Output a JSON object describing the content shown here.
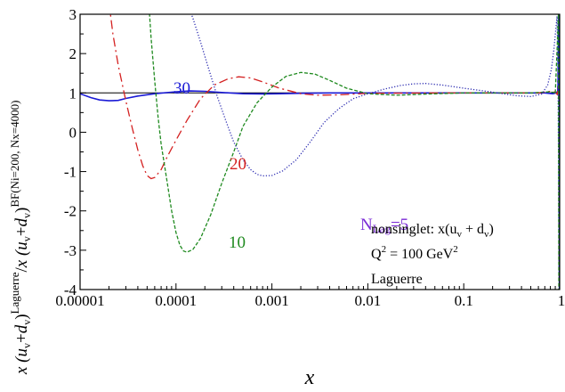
{
  "chart_data": {
    "type": "line",
    "xscale": "log",
    "xlim": [
      1e-05,
      1.0
    ],
    "ylim": [
      -4,
      3
    ],
    "xlabel": "x",
    "ylabel_parts": [
      "x (",
      "u",
      "v",
      "+",
      "d",
      "v",
      ")",
      "Laguerre",
      "/",
      "x (",
      "u",
      "v",
      "+",
      "d",
      "v",
      ")",
      "BF(Ni=200, Nx=4000)"
    ],
    "xticks": [
      {
        "value": 1e-05,
        "label": "0.00001"
      },
      {
        "value": 0.0001,
        "label": "0.0001"
      },
      {
        "value": 0.001,
        "label": "0.001"
      },
      {
        "value": 0.01,
        "label": "0.01"
      },
      {
        "value": 0.1,
        "label": "0.1"
      },
      {
        "value": 1.0,
        "label": "1"
      }
    ],
    "yticks": [
      3,
      2,
      1,
      0,
      -1,
      -2,
      -3,
      -4
    ],
    "reference_line": 1,
    "annotation_lines": [
      "nonsinglet: x(u",
      "v",
      " + d",
      "v",
      ")",
      "Q",
      "2",
      " = 100 GeV",
      "2",
      "Laguerre"
    ],
    "series": [
      {
        "name": "30",
        "color": "#1a1ad6",
        "dash": "solid",
        "points": [
          [
            1e-05,
            0.98
          ],
          [
            1.3e-05,
            0.88
          ],
          [
            1.6e-05,
            0.82
          ],
          [
            2e-05,
            0.8
          ],
          [
            2.5e-05,
            0.81
          ],
          [
            3e-05,
            0.86
          ],
          [
            4e-05,
            0.92
          ],
          [
            6e-05,
            0.98
          ],
          [
            0.0001,
            1.03
          ],
          [
            0.00014,
            1.05
          ],
          [
            0.0002,
            1.04
          ],
          [
            0.0003,
            1.01
          ],
          [
            0.0005,
            0.98
          ],
          [
            0.0008,
            0.975
          ],
          [
            0.0012,
            0.98
          ],
          [
            0.002,
            0.99
          ],
          [
            0.004,
            1.0
          ],
          [
            0.01,
            1.0
          ],
          [
            0.05,
            1.0
          ],
          [
            0.3,
            1.0
          ],
          [
            0.7,
            1.0
          ],
          [
            0.85,
            0.98
          ],
          [
            0.92,
            1.0
          ],
          [
            0.96,
            1.05
          ]
        ]
      },
      {
        "name": "20",
        "color": "#d42020",
        "dash": "dashdot",
        "points": [
          [
            2e-05,
            3.3
          ],
          [
            2.2e-05,
            2.5
          ],
          [
            2.5e-05,
            1.7
          ],
          [
            3e-05,
            0.8
          ],
          [
            3.5e-05,
            0.1
          ],
          [
            4e-05,
            -0.45
          ],
          [
            4.5e-05,
            -0.85
          ],
          [
            5e-05,
            -1.1
          ],
          [
            5.5e-05,
            -1.18
          ],
          [
            6e-05,
            -1.15
          ],
          [
            7e-05,
            -0.95
          ],
          [
            8e-05,
            -0.65
          ],
          [
            0.0001,
            -0.2
          ],
          [
            0.00013,
            0.3
          ],
          [
            0.00018,
            0.85
          ],
          [
            0.00025,
            1.2
          ],
          [
            0.00035,
            1.36
          ],
          [
            0.00045,
            1.41
          ],
          [
            0.0006,
            1.38
          ],
          [
            0.0008,
            1.28
          ],
          [
            0.0012,
            1.12
          ],
          [
            0.002,
            0.98
          ],
          [
            0.003,
            0.94
          ],
          [
            0.005,
            0.95
          ],
          [
            0.01,
            0.99
          ],
          [
            0.05,
            1.0
          ],
          [
            0.3,
            1.0
          ],
          [
            0.6,
            1.0
          ],
          [
            0.8,
            1.04
          ],
          [
            0.9,
            1.02
          ],
          [
            0.95,
            0.95
          ]
        ]
      },
      {
        "name": "10",
        "color": "#1f8a1f",
        "dash": "dash",
        "points": [
          [
            5.2e-05,
            3.3
          ],
          [
            5.5e-05,
            2.4
          ],
          [
            6e-05,
            1.3
          ],
          [
            6.5e-05,
            0.4
          ],
          [
            7e-05,
            -0.3
          ],
          [
            8e-05,
            -1.2
          ],
          [
            9e-05,
            -2.0
          ],
          [
            0.0001,
            -2.55
          ],
          [
            0.00011,
            -2.88
          ],
          [
            0.00012,
            -3.02
          ],
          [
            0.00013,
            -3.05
          ],
          [
            0.00015,
            -2.98
          ],
          [
            0.00018,
            -2.7
          ],
          [
            0.00023,
            -2.1
          ],
          [
            0.0003,
            -1.3
          ],
          [
            0.0004,
            -0.5
          ],
          [
            0.0005,
            0.15
          ],
          [
            0.0007,
            0.75
          ],
          [
            0.001,
            1.15
          ],
          [
            0.0014,
            1.42
          ],
          [
            0.002,
            1.52
          ],
          [
            0.0028,
            1.48
          ],
          [
            0.004,
            1.32
          ],
          [
            0.006,
            1.12
          ],
          [
            0.01,
            0.98
          ],
          [
            0.02,
            0.94
          ],
          [
            0.04,
            0.97
          ],
          [
            0.1,
            1.0
          ],
          [
            0.5,
            1.0
          ],
          [
            0.8,
            1.03
          ],
          [
            0.9,
            1.0
          ]
        ]
      },
      {
        "name": "N",
        "name_sub": "Lag",
        "name_suffix": "=5",
        "color": "#2a2ab0",
        "label_color": "#7a2ad6",
        "dash": "dot",
        "points": [
          [
            0.00013,
            3.3
          ],
          [
            0.00015,
            2.9
          ],
          [
            0.00018,
            2.3
          ],
          [
            0.00022,
            1.6
          ],
          [
            0.00027,
            0.9
          ],
          [
            0.00033,
            0.3
          ],
          [
            0.0004,
            -0.25
          ],
          [
            0.0005,
            -0.7
          ],
          [
            0.0006,
            -0.95
          ],
          [
            0.0007,
            -1.07
          ],
          [
            0.0008,
            -1.11
          ],
          [
            0.001,
            -1.1
          ],
          [
            0.0013,
            -0.98
          ],
          [
            0.0018,
            -0.7
          ],
          [
            0.0025,
            -0.25
          ],
          [
            0.0035,
            0.25
          ],
          [
            0.005,
            0.6
          ],
          [
            0.007,
            0.85
          ],
          [
            0.01,
            0.98
          ],
          [
            0.015,
            1.1
          ],
          [
            0.022,
            1.19
          ],
          [
            0.03,
            1.23
          ],
          [
            0.04,
            1.24
          ],
          [
            0.06,
            1.2
          ],
          [
            0.1,
            1.12
          ],
          [
            0.2,
            1.02
          ],
          [
            0.35,
            0.93
          ],
          [
            0.5,
            0.91
          ],
          [
            0.65,
            0.97
          ],
          [
            0.75,
            1.2
          ],
          [
            0.82,
            1.6
          ],
          [
            0.87,
            2.1
          ],
          [
            0.91,
            2.6
          ],
          [
            0.94,
            2.95
          ],
          [
            0.96,
            1.5
          ],
          [
            0.975,
            -1.0
          ],
          [
            0.985,
            -4.0
          ]
        ]
      }
    ],
    "edge_spikes": [
      {
        "color": "#d42020",
        "dash": "dashdot",
        "points": [
          [
            0.95,
            0.95
          ],
          [
            0.97,
            2.2
          ],
          [
            0.98,
            3.0
          ],
          [
            0.99,
            -4.0
          ]
        ]
      },
      {
        "color": "#1a1ad6",
        "dash": "solid",
        "points": [
          [
            0.96,
            1.05
          ],
          [
            0.975,
            2.8
          ],
          [
            0.985,
            3.0
          ],
          [
            0.993,
            -4.0
          ]
        ]
      },
      {
        "color": "#1f8a1f",
        "dash": "dash",
        "points": [
          [
            0.9,
            1.0
          ],
          [
            0.955,
            2.5
          ],
          [
            0.97,
            3.0
          ],
          [
            0.98,
            -4.0
          ]
        ]
      }
    ]
  }
}
